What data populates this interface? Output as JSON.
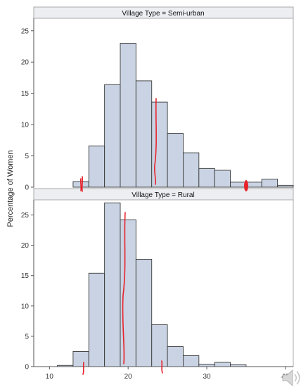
{
  "chart_data": {
    "type": "bar",
    "ylabel": "Percentage of Women",
    "xlabel": "",
    "xlim": [
      8,
      41
    ],
    "x_ticks": [
      10,
      20,
      30,
      40
    ],
    "bin_width": 2,
    "panels": [
      {
        "title": "Village Type = Semi-urban",
        "ylim": [
          0,
          27
        ],
        "y_ticks": [
          0,
          5,
          10,
          15,
          20,
          25
        ],
        "bin_starts": [
          11,
          13,
          15,
          17,
          19,
          21,
          23,
          25,
          27,
          29,
          31,
          33,
          35,
          37,
          39
        ],
        "values": [
          0,
          0.9,
          6.6,
          16.4,
          23.0,
          17.0,
          13.6,
          8.6,
          5.5,
          3.0,
          2.7,
          0.8,
          0.8,
          1.3,
          0.3
        ]
      },
      {
        "title": "Village Type = Rural",
        "ylim": [
          0,
          27.5
        ],
        "y_ticks": [
          0,
          5,
          10,
          15,
          20,
          25
        ],
        "bin_starts": [
          11,
          13,
          15,
          17,
          19,
          21,
          23,
          25,
          27,
          29,
          31,
          33
        ],
        "values": [
          0.2,
          2.5,
          15.4,
          27.0,
          24.2,
          17.7,
          6.9,
          3.3,
          1.8,
          0.4,
          0.7,
          0.3
        ]
      }
    ]
  }
}
